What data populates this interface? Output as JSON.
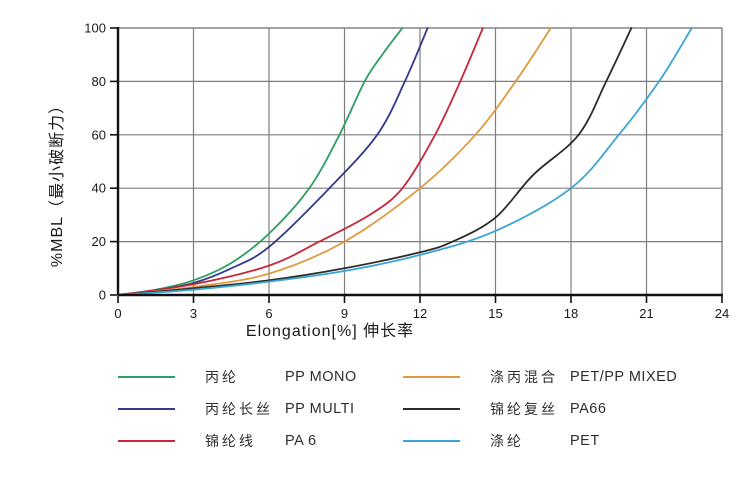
{
  "chart_data": {
    "type": "line",
    "title": "",
    "xlabel": "Elongation[%]  伸长率",
    "ylabel": "%MBL（最小破断力）",
    "xlim": [
      0,
      24
    ],
    "ylim": [
      0,
      100
    ],
    "x_ticks": [
      0,
      3,
      6,
      9,
      12,
      15,
      18,
      21,
      24
    ],
    "y_ticks": [
      0,
      20,
      40,
      60,
      80,
      100
    ],
    "grid": true,
    "legend_position": "bottom",
    "colors": {
      "grid": "#7d7d7d",
      "axis": "#111111",
      "text": "#1a1a1a"
    },
    "series": [
      {
        "name_cn": "丙纶",
        "name_en": "PP MONO",
        "color": "#2e9e62",
        "points": [
          [
            0,
            0
          ],
          [
            1.5,
            2
          ],
          [
            3,
            5.5
          ],
          [
            4.5,
            12
          ],
          [
            6,
            23
          ],
          [
            7.6,
            40
          ],
          [
            8.8,
            60
          ],
          [
            9.8,
            80
          ],
          [
            10.5,
            90
          ],
          [
            11.3,
            100
          ]
        ]
      },
      {
        "name_cn": "丙纶长丝",
        "name_en": "PP MULTI",
        "color": "#34388f",
        "points": [
          [
            0,
            0
          ],
          [
            1.5,
            1.8
          ],
          [
            3,
            4.5
          ],
          [
            4.5,
            10
          ],
          [
            6,
            18
          ],
          [
            8.4,
            40
          ],
          [
            10.3,
            60
          ],
          [
            11.4,
            80
          ],
          [
            12.3,
            100
          ]
        ]
      },
      {
        "name_cn": "锦纶线",
        "name_en": "PA 6",
        "color": "#c62839",
        "points": [
          [
            0,
            0
          ],
          [
            3,
            4
          ],
          [
            6,
            11
          ],
          [
            8,
            20
          ],
          [
            10,
            30
          ],
          [
            11.3,
            40
          ],
          [
            12.6,
            60
          ],
          [
            13.6,
            80
          ],
          [
            14.5,
            100
          ]
        ]
      },
      {
        "name_cn": "涤丙混合",
        "name_en": "PET/PP MIXED",
        "color": "#e09a3e",
        "points": [
          [
            0,
            0
          ],
          [
            3,
            3
          ],
          [
            6,
            8
          ],
          [
            9,
            20
          ],
          [
            12,
            40
          ],
          [
            14.2,
            60
          ],
          [
            15.8,
            80
          ],
          [
            17.2,
            100
          ]
        ]
      },
      {
        "name_cn": "锦纶复丝",
        "name_en": "PA66",
        "color": "#2b2b2b",
        "points": [
          [
            0,
            0
          ],
          [
            3,
            2.5
          ],
          [
            6,
            5.5
          ],
          [
            9,
            10
          ],
          [
            12,
            16
          ],
          [
            13.3,
            20
          ],
          [
            15,
            29
          ],
          [
            16.5,
            45
          ],
          [
            18.3,
            60
          ],
          [
            19.4,
            80
          ],
          [
            20.4,
            100
          ]
        ]
      },
      {
        "name_cn": "涤纶",
        "name_en": "PET",
        "color": "#3ba4d4",
        "points": [
          [
            0,
            0
          ],
          [
            3,
            2
          ],
          [
            6,
            5
          ],
          [
            9,
            9
          ],
          [
            12,
            15
          ],
          [
            15,
            24
          ],
          [
            18,
            40
          ],
          [
            19.9,
            60
          ],
          [
            21.5,
            80
          ],
          [
            22.8,
            100
          ]
        ]
      }
    ]
  }
}
